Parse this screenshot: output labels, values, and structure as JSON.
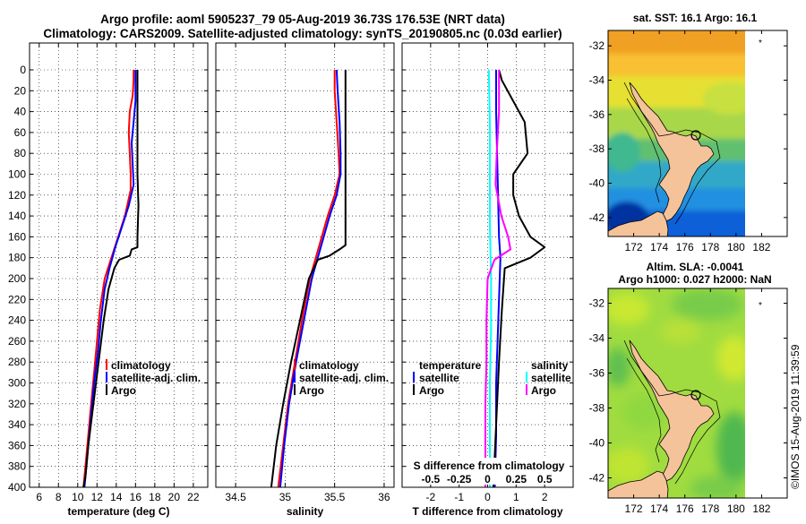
{
  "header": {
    "title_line1": "Argo profile: aoml 5905237_79 05-Aug-2019 36.73S 176.53E (NRT data)",
    "title_line2": "Climatology: CARS2009. Satellite-adjusted climatology: synTS_20190805.nc (0.03d earlier)"
  },
  "stamp": "©IMOS 15-Aug-2019 11:39:59",
  "colors": {
    "climatology": "#ff0000",
    "satellite": "#0000ff",
    "argo": "#000000",
    "t_satellite": "#0000ff",
    "s_satellite": "#00ffff",
    "s_argo": "#ff00ff",
    "land": "#f5c39a"
  },
  "chart_data": [
    {
      "type": "line",
      "title": "",
      "xlabel": "temperature (deg C)",
      "ylabel": "",
      "xlim": [
        5,
        23.5
      ],
      "ylim": [
        400,
        0
      ],
      "xticks": [
        "6",
        "8",
        "10",
        "12",
        "14",
        "16",
        "18",
        "20",
        "22"
      ],
      "xtick_values": [
        6,
        8,
        10,
        12,
        14,
        16,
        18,
        20,
        22
      ],
      "yticks": [
        "0",
        "20",
        "40",
        "60",
        "80",
        "100",
        "120",
        "140",
        "160",
        "180",
        "200",
        "220",
        "240",
        "260",
        "280",
        "300",
        "320",
        "340",
        "360",
        "380",
        "400"
      ],
      "legend": [
        "climatology",
        "satellite-adj. clim.",
        "Argo"
      ],
      "series": [
        {
          "name": "climatology",
          "color_key": "climatology",
          "points": [
            [
              15.8,
              0
            ],
            [
              15.8,
              10
            ],
            [
              15.7,
              25
            ],
            [
              15.4,
              40
            ],
            [
              15.3,
              60
            ],
            [
              15.4,
              80
            ],
            [
              15.5,
              100
            ],
            [
              15.5,
              115
            ],
            [
              14.9,
              140
            ],
            [
              14.2,
              160
            ],
            [
              13.5,
              180
            ],
            [
              12.8,
              200
            ],
            [
              12.3,
              230
            ],
            [
              12.0,
              260
            ],
            [
              11.7,
              290
            ],
            [
              11.4,
              320
            ],
            [
              11.1,
              350
            ],
            [
              10.8,
              380
            ],
            [
              10.6,
              400
            ]
          ]
        },
        {
          "name": "satellite-adj. clim.",
          "color_key": "satellite",
          "points": [
            [
              16.0,
              0
            ],
            [
              16.0,
              10
            ],
            [
              16.0,
              30
            ],
            [
              15.8,
              50
            ],
            [
              15.6,
              70
            ],
            [
              15.7,
              90
            ],
            [
              15.8,
              110
            ],
            [
              15.3,
              130
            ],
            [
              14.6,
              150
            ],
            [
              13.9,
              170
            ],
            [
              13.3,
              190
            ],
            [
              12.8,
              210
            ],
            [
              12.4,
              240
            ],
            [
              12.1,
              270
            ],
            [
              11.7,
              300
            ],
            [
              11.4,
              330
            ],
            [
              11.1,
              360
            ],
            [
              10.8,
              390
            ],
            [
              10.7,
              400
            ]
          ]
        },
        {
          "name": "Argo",
          "color_key": "argo",
          "points": [
            [
              16.2,
              0
            ],
            [
              16.2,
              30
            ],
            [
              16.2,
              60
            ],
            [
              16.2,
              100
            ],
            [
              16.3,
              130
            ],
            [
              16.2,
              160
            ],
            [
              16.2,
              170
            ],
            [
              15.6,
              172
            ],
            [
              15.4,
              178
            ],
            [
              14.3,
              182
            ],
            [
              13.8,
              190
            ],
            [
              13.2,
              210
            ],
            [
              12.7,
              240
            ],
            [
              12.3,
              270
            ],
            [
              11.9,
              300
            ],
            [
              11.5,
              330
            ],
            [
              11.1,
              360
            ],
            [
              10.8,
              390
            ],
            [
              10.6,
              400
            ]
          ]
        }
      ]
    },
    {
      "type": "line",
      "xlabel": "salinity",
      "xlim": [
        34.3,
        36.1
      ],
      "ylim": [
        400,
        0
      ],
      "xticks": [
        "34.5",
        "35",
        "35.5",
        "36"
      ],
      "xtick_values": [
        34.5,
        35,
        35.5,
        36
      ],
      "legend": [
        "climatology",
        "satellite-adj. clim.",
        "Argo"
      ],
      "series": [
        {
          "name": "climatology",
          "color_key": "climatology",
          "points": [
            [
              35.5,
              0
            ],
            [
              35.5,
              20
            ],
            [
              35.52,
              50
            ],
            [
              35.54,
              80
            ],
            [
              35.55,
              100
            ],
            [
              35.5,
              120
            ],
            [
              35.43,
              140
            ],
            [
              35.34,
              170
            ],
            [
              35.25,
              200
            ],
            [
              35.17,
              240
            ],
            [
              35.1,
              280
            ],
            [
              35.03,
              320
            ],
            [
              34.98,
              360
            ],
            [
              34.93,
              400
            ]
          ]
        },
        {
          "name": "satellite-adj. clim.",
          "color_key": "satellite",
          "points": [
            [
              35.52,
              0
            ],
            [
              35.53,
              20
            ],
            [
              35.55,
              50
            ],
            [
              35.56,
              80
            ],
            [
              35.56,
              100
            ],
            [
              35.52,
              120
            ],
            [
              35.45,
              140
            ],
            [
              35.36,
              170
            ],
            [
              35.27,
              200
            ],
            [
              35.19,
              240
            ],
            [
              35.11,
              280
            ],
            [
              35.04,
              320
            ],
            [
              34.99,
              360
            ],
            [
              34.95,
              400
            ]
          ]
        },
        {
          "name": "Argo",
          "color_key": "argo",
          "points": [
            [
              35.61,
              0
            ],
            [
              35.61,
              50
            ],
            [
              35.61,
              100
            ],
            [
              35.61,
              150
            ],
            [
              35.61,
              168
            ],
            [
              35.55,
              172
            ],
            [
              35.45,
              178
            ],
            [
              35.33,
              182
            ],
            [
              35.24,
              200
            ],
            [
              35.15,
              240
            ],
            [
              35.06,
              280
            ],
            [
              34.98,
              320
            ],
            [
              34.91,
              360
            ],
            [
              34.86,
              400
            ]
          ]
        }
      ]
    },
    {
      "type": "line",
      "xlabel": "T difference from climatology",
      "x2label": "S difference from climatology",
      "xlim": [
        -3.0,
        3.0
      ],
      "ylim": [
        400,
        0
      ],
      "xticks": [
        "-2",
        "-1",
        "0",
        "1",
        "2"
      ],
      "xtick_values": [
        -2,
        -1,
        0,
        1,
        2
      ],
      "x2ticks": [
        "-0.5",
        "-0.25",
        "0",
        "0.25",
        "0.5"
      ],
      "x2tick_values": [
        -0.5,
        -0.25,
        0,
        0.25,
        0.5
      ],
      "x2lim": [
        -0.75,
        0.75
      ],
      "legend_left": [
        "temperature",
        "satellite",
        "Argo"
      ],
      "legend_right": [
        "salinity",
        "satellite",
        "Argo"
      ],
      "series": [
        {
          "name": "temperature satellite",
          "axis": "T",
          "color_key": "t_satellite",
          "points": [
            [
              0.3,
              0
            ],
            [
              0.3,
              40
            ],
            [
              0.35,
              100
            ],
            [
              0.4,
              160
            ],
            [
              0.45,
              180
            ],
            [
              0.4,
              220
            ],
            [
              0.35,
              260
            ],
            [
              0.3,
              300
            ],
            [
              0.3,
              350
            ],
            [
              0.25,
              400
            ]
          ]
        },
        {
          "name": "temperature Argo",
          "axis": "T",
          "color_key": "argo",
          "points": [
            [
              0.4,
              0
            ],
            [
              0.5,
              10
            ],
            [
              0.9,
              30
            ],
            [
              1.3,
              50
            ],
            [
              1.4,
              80
            ],
            [
              0.9,
              100
            ],
            [
              0.9,
              120
            ],
            [
              1.1,
              140
            ],
            [
              1.5,
              160
            ],
            [
              2.0,
              170
            ],
            [
              1.5,
              180
            ],
            [
              0.6,
              190
            ],
            [
              0.5,
              230
            ],
            [
              0.4,
              280
            ],
            [
              0.3,
              340
            ],
            [
              0.2,
              400
            ]
          ]
        },
        {
          "name": "salinity satellite",
          "axis": "S",
          "color_key": "s_satellite",
          "points": [
            [
              0.01,
              0
            ],
            [
              0.02,
              50
            ],
            [
              0.02,
              100
            ],
            [
              0.02,
              150
            ],
            [
              0.03,
              200
            ],
            [
              0.03,
              250
            ],
            [
              0.02,
              300
            ],
            [
              0.02,
              350
            ],
            [
              0.02,
              400
            ]
          ]
        },
        {
          "name": "salinity Argo",
          "axis": "S",
          "color_key": "s_argo",
          "points": [
            [
              0.1,
              0
            ],
            [
              0.1,
              40
            ],
            [
              0.08,
              80
            ],
            [
              0.07,
              110
            ],
            [
              0.12,
              140
            ],
            [
              0.18,
              160
            ],
            [
              0.2,
              172
            ],
            [
              0.06,
              182
            ],
            [
              0.0,
              200
            ],
            [
              -0.01,
              240
            ],
            [
              -0.01,
              280
            ],
            [
              -0.02,
              320
            ],
            [
              -0.02,
              360
            ],
            [
              -0.02,
              400
            ]
          ]
        }
      ]
    }
  ],
  "maps": {
    "top": {
      "title": "sat. SST: 16.1 Argo: 16.1",
      "yticks": [
        "-32",
        "-34",
        "-36",
        "-38",
        "-40",
        "-42"
      ],
      "xticks": [
        "172",
        "174",
        "176",
        "178",
        "180",
        "182"
      ]
    },
    "bottom": {
      "title_line1": "Altim. SLA: -0.0041",
      "title_line2": "Argo h1000: 0.027 h2000: NaN",
      "yticks": [
        "-32",
        "-34",
        "-36",
        "-38",
        "-40",
        "-42"
      ],
      "xticks": [
        "172",
        "174",
        "176",
        "178",
        "180",
        "182"
      ]
    },
    "profile_location": {
      "lon": 176.53,
      "lat": -36.73
    }
  }
}
